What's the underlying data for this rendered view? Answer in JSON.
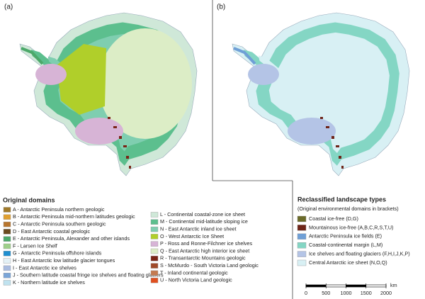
{
  "panels": [
    "(a)",
    "(b)"
  ],
  "legend_original": {
    "title": "Original domains",
    "items": [
      {
        "label": "A - Antarctic Peninsula northern geologic",
        "color": "#a07a2a"
      },
      {
        "label": "B - Antarctic Peninsula mid-northern latitudes geologic",
        "color": "#e0a030"
      },
      {
        "label": "C - Antarctic Peninsula southern geologic",
        "color": "#b8762e"
      },
      {
        "label": "D - East Antarctic coastal geologic",
        "color": "#6a4a1e"
      },
      {
        "label": "E - Antarctic Peninsula, Alexander and other islands",
        "color": "#4ca86a"
      },
      {
        "label": "F - Larsen Ice Shelf",
        "color": "#9ed08a"
      },
      {
        "label": "G - Antarctic Peninsula offshore islands",
        "color": "#1f8fd0"
      },
      {
        "label": "H - East Antarctic low latitude glacier tongues",
        "color": "#e4f1f6"
      },
      {
        "label": "I - East Antarctic ice shelves",
        "color": "#a9bce0"
      },
      {
        "label": "J - Southern latitude coastal fringe ice shelves and floating glaciers",
        "color": "#7aa5d8"
      },
      {
        "label": "K - Northern latitude ice shelves",
        "color": "#bfe2ef"
      },
      {
        "label": "L - Continental coastal-zone ice sheet",
        "color": "#cfe8d8"
      },
      {
        "label": "M - Continental mid-latitude sloping ice",
        "color": "#5cbf8e"
      },
      {
        "label": "N - East Antarctic inland ice sheet",
        "color": "#7fceb0"
      },
      {
        "label": "O - West Antarctic Ice Sheet",
        "color": "#b0cf2a"
      },
      {
        "label": "P - Ross and Ronne-Filchner ice shelves",
        "color": "#d7b4d6"
      },
      {
        "label": "Q - East Antarctic high interior ice sheet",
        "color": "#dcedc6"
      },
      {
        "label": "R - Transantarctic Mountains geologic",
        "color": "#7a2416"
      },
      {
        "label": "S - McMurdo - South Victoria Land geologic",
        "color": "#a04a2a"
      },
      {
        "label": "T - Inland continental geologic",
        "color": "#c47a50"
      },
      {
        "label": "U - North Victoria Land geologic",
        "color": "#e05020"
      }
    ]
  },
  "legend_reclassified": {
    "title": "Reclassified landscape types",
    "subtitle": "(Original environmental domains in brackets)",
    "items": [
      {
        "label": "Coastal ice-free (D,G)",
        "color": "#6b6b2a"
      },
      {
        "label": "Mountainous ice-free (A,B,C,R,S,T,U)",
        "color": "#6e2518"
      },
      {
        "label": "Antarctic Peninsula ice fields (E)",
        "color": "#6f9fd6"
      },
      {
        "label": "Coastal-continental margin (L,M)",
        "color": "#84d6c4"
      },
      {
        "label": "Ice shelves and floating glaciers (F,H,I,J,K,P)",
        "color": "#b4c4e6"
      },
      {
        "label": "Central Antarctic ice sheet (N,O,Q)",
        "color": "#d8f0f4"
      }
    ]
  },
  "scale_bar": {
    "ticks": [
      0,
      500,
      1000,
      1500,
      2000
    ],
    "unit": "km"
  }
}
